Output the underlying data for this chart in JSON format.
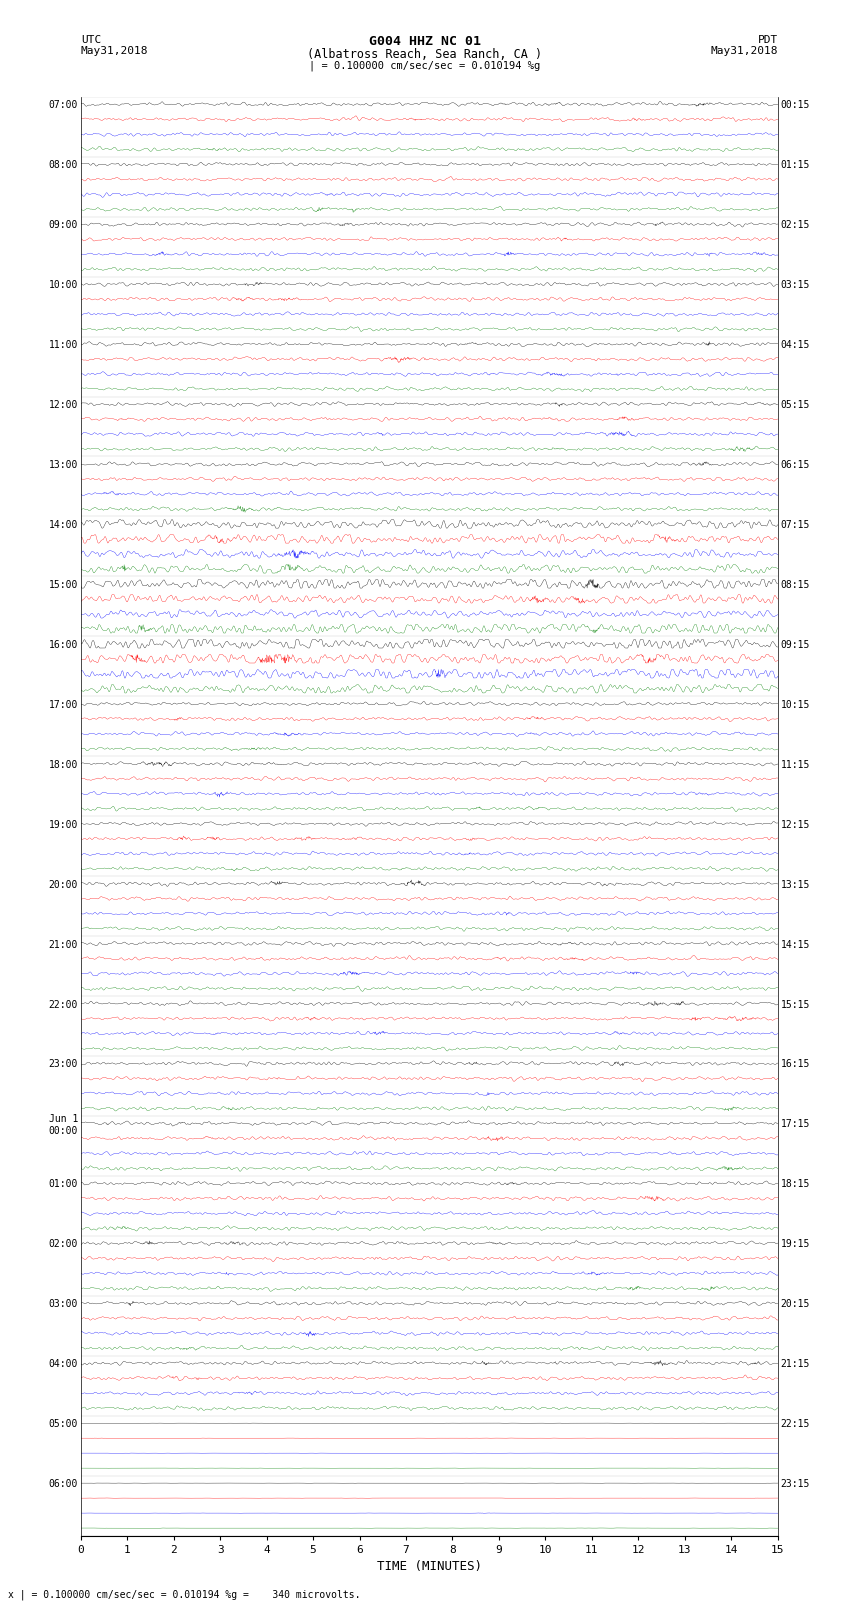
{
  "title_line1": "G004 HHZ NC 01",
  "title_line2": "(Albatross Reach, Sea Ranch, CA )",
  "scale_text": "| = 0.100000 cm/sec/sec = 0.010194 %g",
  "bottom_scale_text": "x | = 0.100000 cm/sec/sec = 0.010194 %g =    340 microvolts.",
  "left_header": "UTC",
  "left_date": "May31,2018",
  "right_header": "PDT",
  "right_date": "May31,2018",
  "xlabel": "TIME (MINUTES)",
  "left_times": [
    "07:00",
    "08:00",
    "09:00",
    "10:00",
    "11:00",
    "12:00",
    "13:00",
    "14:00",
    "15:00",
    "16:00",
    "17:00",
    "18:00",
    "19:00",
    "20:00",
    "21:00",
    "22:00",
    "23:00",
    "Jun 1\n00:00",
    "01:00",
    "02:00",
    "03:00",
    "04:00",
    "05:00",
    "06:00"
  ],
  "right_times": [
    "00:15",
    "01:15",
    "02:15",
    "03:15",
    "04:15",
    "05:15",
    "06:15",
    "07:15",
    "08:15",
    "09:15",
    "10:15",
    "11:15",
    "12:15",
    "13:15",
    "14:15",
    "15:15",
    "16:15",
    "17:15",
    "18:15",
    "19:15",
    "20:15",
    "21:15",
    "22:15",
    "23:15"
  ],
  "n_rows": 24,
  "traces_per_row": 4,
  "colors": [
    "black",
    "red",
    "blue",
    "green"
  ],
  "trace_duration_minutes": 15,
  "samples_per_trace": 1800,
  "fig_width": 8.5,
  "fig_height": 16.13,
  "background_color": "white",
  "xticks": [
    0,
    1,
    2,
    3,
    4,
    5,
    6,
    7,
    8,
    9,
    10,
    11,
    12,
    13,
    14,
    15
  ],
  "amplitude_scale": 0.28,
  "noise_base": 0.055,
  "seed": 42,
  "linewidth": 0.25,
  "dpi": 100
}
